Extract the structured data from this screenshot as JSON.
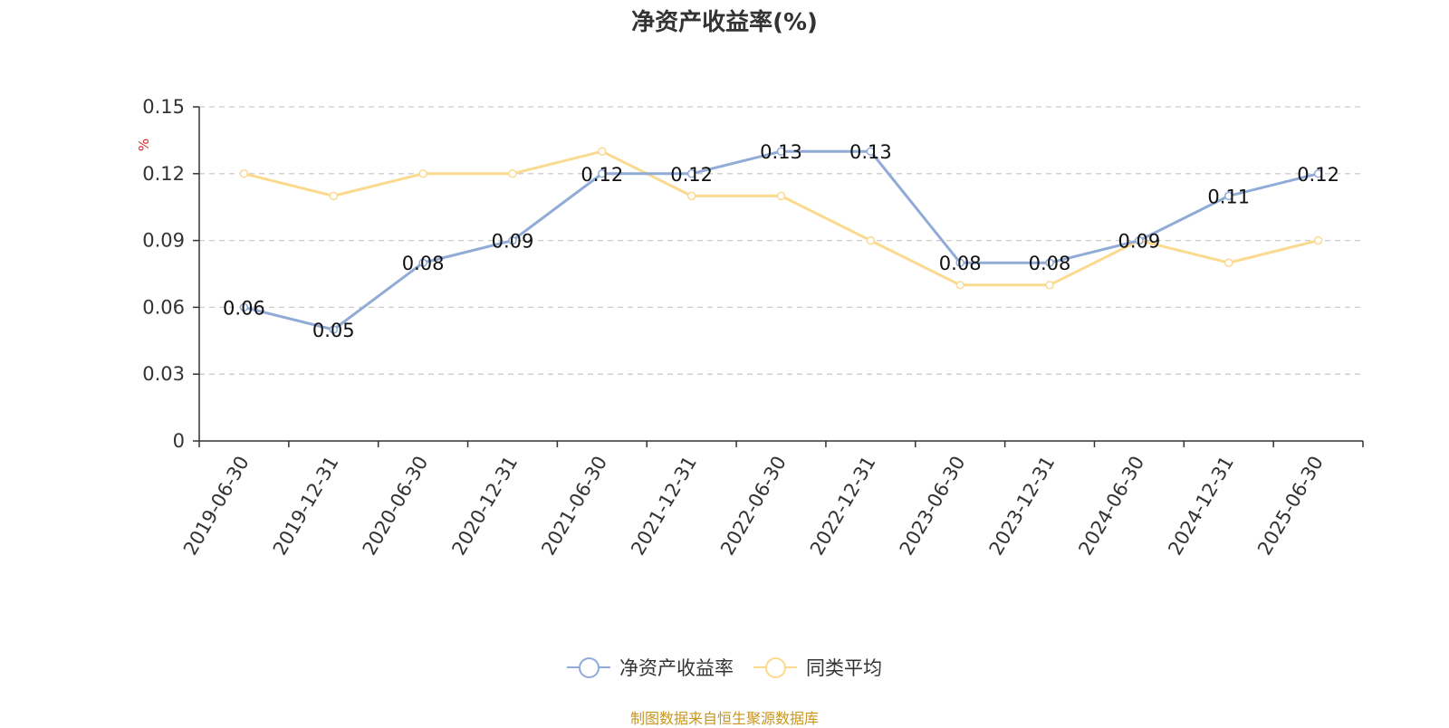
{
  "colors": {
    "series_main": "#8fabd6",
    "series_avg": "#fbd98e",
    "axis": "#333333",
    "grid": "#cccccc",
    "unit": "#e02020",
    "source": "#c8961e"
  },
  "chart_data": {
    "type": "line",
    "title": "净资产收益率(%)",
    "ylabel": "%",
    "xlabel": "",
    "ylim": [
      0,
      0.15
    ],
    "yticks": [
      "0",
      "0.03",
      "0.06",
      "0.09",
      "0.12",
      "0.15"
    ],
    "grid": true,
    "legend_position": "bottom",
    "categories": [
      "2019-06-30",
      "2019-12-31",
      "2020-06-30",
      "2020-12-31",
      "2021-06-30",
      "2021-12-31",
      "2022-06-30",
      "2022-12-31",
      "2023-06-30",
      "2023-12-31",
      "2024-06-30",
      "2024-12-31",
      "2025-06-30"
    ],
    "series": [
      {
        "name": "净资产收益率",
        "values": [
          0.06,
          0.05,
          0.08,
          0.09,
          0.12,
          0.12,
          0.13,
          0.13,
          0.08,
          0.08,
          0.09,
          0.11,
          0.12
        ],
        "data_labels": [
          "0.06",
          "0.05",
          "0.08",
          "0.09",
          "0.12",
          "0.12",
          "0.13",
          "0.13",
          "0.08",
          "0.08",
          "0.09",
          "0.11",
          "0.12"
        ]
      },
      {
        "name": "同类平均",
        "values": [
          0.12,
          0.11,
          0.12,
          0.12,
          0.13,
          0.11,
          0.11,
          0.09,
          0.07,
          0.07,
          0.09,
          0.08,
          0.09
        ]
      }
    ]
  },
  "source_note": "制图数据来自恒生聚源数据库"
}
